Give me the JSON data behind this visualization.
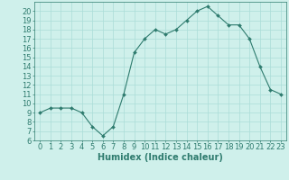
{
  "x": [
    0,
    1,
    2,
    3,
    4,
    5,
    6,
    7,
    8,
    9,
    10,
    11,
    12,
    13,
    14,
    15,
    16,
    17,
    18,
    19,
    20,
    21,
    22,
    23
  ],
  "y": [
    9,
    9.5,
    9.5,
    9.5,
    9,
    7.5,
    6.5,
    7.5,
    11,
    15.5,
    17,
    18,
    17.5,
    18,
    19,
    20,
    20.5,
    19.5,
    18.5,
    18.5,
    17,
    14,
    11.5,
    11
  ],
  "line_color": "#2e7b6e",
  "marker": "D",
  "marker_size": 2.0,
  "bg_color": "#cff0eb",
  "grid_color": "#aaddd8",
  "xlabel": "Humidex (Indice chaleur)",
  "xlim": [
    -0.5,
    23.5
  ],
  "ylim": [
    6,
    21
  ],
  "yticks": [
    6,
    7,
    8,
    9,
    10,
    11,
    12,
    13,
    14,
    15,
    16,
    17,
    18,
    19,
    20
  ],
  "xticks": [
    0,
    1,
    2,
    3,
    4,
    5,
    6,
    7,
    8,
    9,
    10,
    11,
    12,
    13,
    14,
    15,
    16,
    17,
    18,
    19,
    20,
    21,
    22,
    23
  ],
  "tick_fontsize": 6.0,
  "xlabel_fontsize": 7.0,
  "line_width": 0.8
}
